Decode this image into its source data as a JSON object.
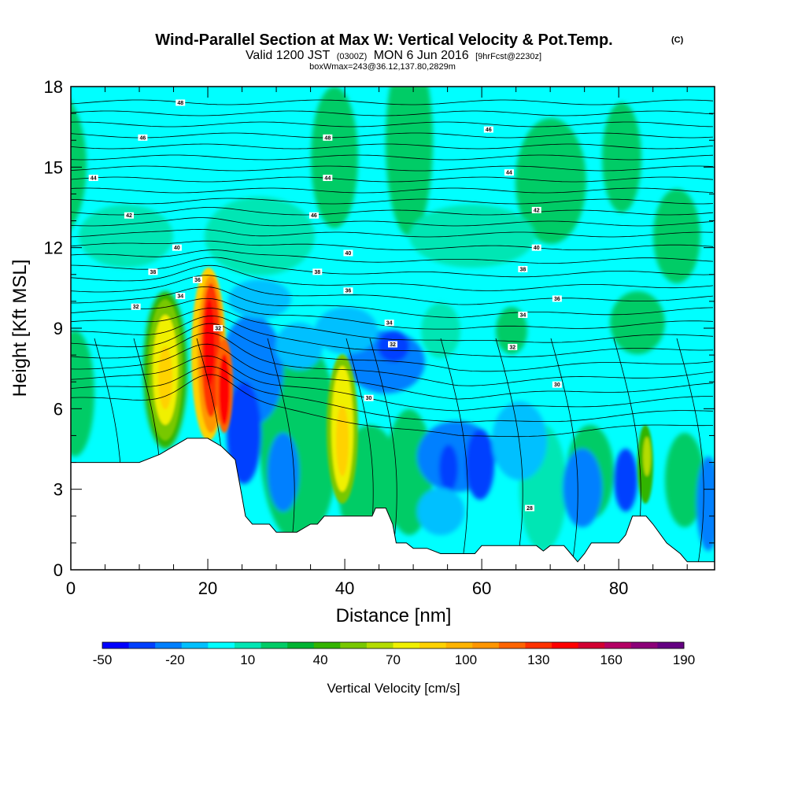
{
  "chart_data": {
    "type": "heatmap",
    "title": "Wind-Parallel Section at Max W: Vertical Velocity & Pot.Temp.",
    "title_mark": "(C)",
    "subtitle_parts": {
      "valid": "Valid 1200 JST",
      "zulu": "(0300Z)",
      "date": "MON 6 Jun 2016",
      "fcst": "[9hrFcst@2230z]"
    },
    "boxwmax": "boxWmax=243@36.12,137.80,2829m",
    "xlabel": "Distance [nm]",
    "ylabel": "Height [Kft MSL]",
    "xlim": [
      0,
      94
    ],
    "ylim": [
      0,
      18
    ],
    "x_ticks": [
      "0",
      "20",
      "40",
      "60",
      "80"
    ],
    "y_ticks": [
      "0",
      "3",
      "6",
      "9",
      "12",
      "15",
      "18"
    ],
    "colorbar": {
      "label": "Vertical Velocity [cm/s]",
      "tick_labels": [
        "-50",
        "-20",
        "10",
        "40",
        "70",
        "100",
        "130",
        "160",
        "190"
      ],
      "colors": [
        "#0000ff",
        "#0040ff",
        "#0080ff",
        "#00c0ff",
        "#00ffff",
        "#00e6b4",
        "#00cc66",
        "#00b432",
        "#33b400",
        "#78c800",
        "#b4dc00",
        "#f0f000",
        "#ffd200",
        "#ffb400",
        "#ff9600",
        "#ff6400",
        "#ff3200",
        "#ff0000",
        "#d20032",
        "#b40064",
        "#8c0078",
        "#640082"
      ]
    },
    "terrain_kft": [
      [
        0,
        4.0
      ],
      [
        10,
        4.0
      ],
      [
        13,
        4.3
      ],
      [
        15,
        4.6
      ],
      [
        17,
        4.9
      ],
      [
        20,
        4.9
      ],
      [
        22,
        4.6
      ],
      [
        24,
        4.1
      ],
      [
        24.8,
        3.0
      ],
      [
        25.5,
        2.0
      ],
      [
        26.5,
        1.7
      ],
      [
        29,
        1.7
      ],
      [
        30,
        1.4
      ],
      [
        33,
        1.4
      ],
      [
        35,
        1.7
      ],
      [
        36,
        1.7
      ],
      [
        37,
        2.0
      ],
      [
        44,
        2.0
      ],
      [
        44.5,
        2.3
      ],
      [
        46,
        2.3
      ],
      [
        47,
        1.7
      ],
      [
        47.5,
        1.0
      ],
      [
        49,
        1.0
      ],
      [
        50,
        0.8
      ],
      [
        52,
        0.8
      ],
      [
        54,
        0.6
      ],
      [
        59,
        0.6
      ],
      [
        60,
        0.9
      ],
      [
        68,
        0.9
      ],
      [
        69,
        0.7
      ],
      [
        70,
        0.9
      ],
      [
        72,
        0.9
      ],
      [
        73,
        0.6
      ],
      [
        74,
        0.3
      ],
      [
        75,
        0.6
      ],
      [
        76,
        1.0
      ],
      [
        80,
        1.0
      ],
      [
        81,
        1.3
      ],
      [
        82,
        2.0
      ],
      [
        84,
        2.0
      ],
      [
        85,
        1.7
      ],
      [
        87,
        1.0
      ],
      [
        89,
        0.6
      ],
      [
        90,
        0.3
      ],
      [
        94,
        0.3
      ]
    ],
    "theta_contour_labels": [
      {
        "label": "48",
        "x": 16,
        "y": 17.4
      },
      {
        "label": "46",
        "x": 10.5,
        "y": 16.1
      },
      {
        "label": "44",
        "x": 3.3,
        "y": 14.6
      },
      {
        "label": "42",
        "x": 8.5,
        "y": 13.2
      },
      {
        "label": "40",
        "x": 15.5,
        "y": 12.0
      },
      {
        "label": "38",
        "x": 12,
        "y": 11.1
      },
      {
        "label": "36",
        "x": 18.5,
        "y": 10.8
      },
      {
        "label": "34",
        "x": 16,
        "y": 10.2
      },
      {
        "label": "32",
        "x": 9.5,
        "y": 9.8
      },
      {
        "label": "32",
        "x": 21.5,
        "y": 9.0
      },
      {
        "label": "48",
        "x": 37.5,
        "y": 16.1
      },
      {
        "label": "44",
        "x": 37.5,
        "y": 14.6
      },
      {
        "label": "46",
        "x": 35.5,
        "y": 13.2
      },
      {
        "label": "40",
        "x": 40.5,
        "y": 11.8
      },
      {
        "label": "38",
        "x": 36,
        "y": 11.1
      },
      {
        "label": "36",
        "x": 40.5,
        "y": 10.4
      },
      {
        "label": "34",
        "x": 46.5,
        "y": 9.2
      },
      {
        "label": "32",
        "x": 47,
        "y": 8.4
      },
      {
        "label": "30",
        "x": 43.5,
        "y": 6.4
      },
      {
        "label": "46",
        "x": 61,
        "y": 16.4
      },
      {
        "label": "44",
        "x": 64,
        "y": 14.8
      },
      {
        "label": "42",
        "x": 68,
        "y": 13.4
      },
      {
        "label": "40",
        "x": 68,
        "y": 12.0
      },
      {
        "label": "38",
        "x": 66,
        "y": 11.2
      },
      {
        "label": "36",
        "x": 71,
        "y": 10.1
      },
      {
        "label": "34",
        "x": 66,
        "y": 9.5
      },
      {
        "label": "32",
        "x": 64.5,
        "y": 8.3
      },
      {
        "label": "30",
        "x": 71,
        "y": 6.9
      },
      {
        "label": "28",
        "x": 67,
        "y": 2.3
      }
    ]
  }
}
